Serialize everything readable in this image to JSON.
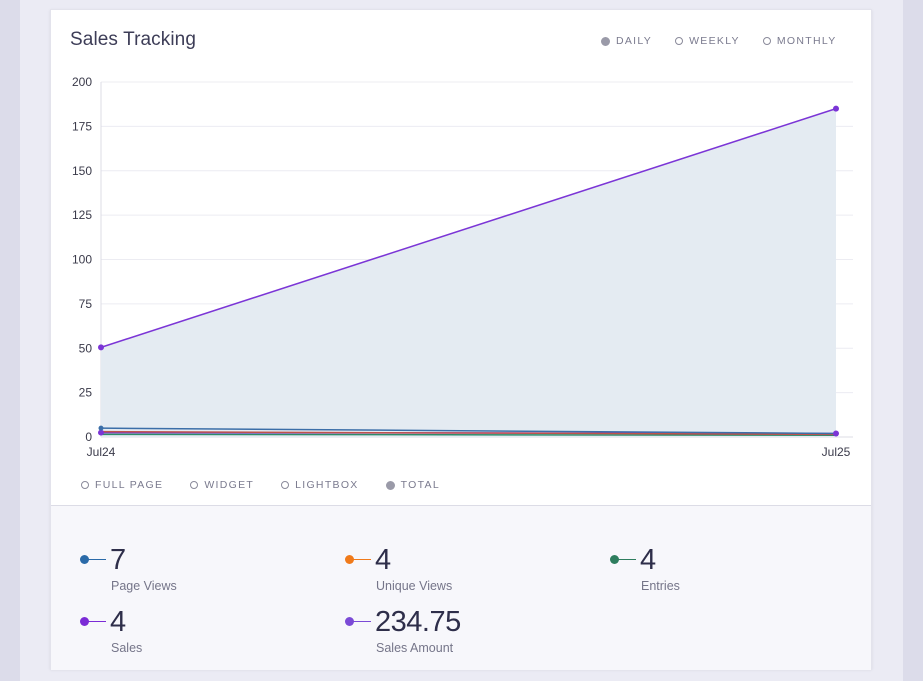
{
  "card": {
    "title": "Sales Tracking"
  },
  "period_options": [
    {
      "label": "DAILY",
      "selected": true
    },
    {
      "label": "WEEKLY",
      "selected": false
    },
    {
      "label": "MONTHLY",
      "selected": false
    }
  ],
  "series_options": [
    {
      "label": "FULL PAGE",
      "selected": false
    },
    {
      "label": "WIDGET",
      "selected": false
    },
    {
      "label": "LIGHTBOX",
      "selected": false
    },
    {
      "label": "TOTAL",
      "selected": true
    }
  ],
  "chart_data": {
    "type": "line",
    "categories": [
      "Jul24",
      "Jul25"
    ],
    "ylim": [
      0,
      200
    ],
    "yticks": [
      0,
      25,
      50,
      75,
      100,
      125,
      150,
      175,
      200
    ],
    "grid": true,
    "series": [
      {
        "values": [
          50.5,
          185
        ],
        "color": "#7b35d6",
        "fill": "#e4ebf2"
      },
      {
        "values": [
          5,
          2
        ],
        "color": "#3b6ea8"
      },
      {
        "values": [
          3,
          1.5
        ],
        "color": "#c0524b"
      },
      {
        "values": [
          2.5,
          2
        ],
        "color": "#7b35d6"
      },
      {
        "values": [
          1.5,
          1
        ],
        "color": "#2e8b6a"
      }
    ]
  },
  "stats": [
    {
      "value": "7",
      "label": "Page Views",
      "color": "#2a6aa8"
    },
    {
      "value": "4",
      "label": "Unique Views",
      "color": "#f07a1a"
    },
    {
      "value": "4",
      "label": "Entries",
      "color": "#2e7d5e"
    },
    {
      "value": "4",
      "label": "Sales",
      "color": "#7b2bd6"
    },
    {
      "value": "234.75",
      "label": "Sales Amount",
      "color": "#7b4ad6"
    }
  ]
}
